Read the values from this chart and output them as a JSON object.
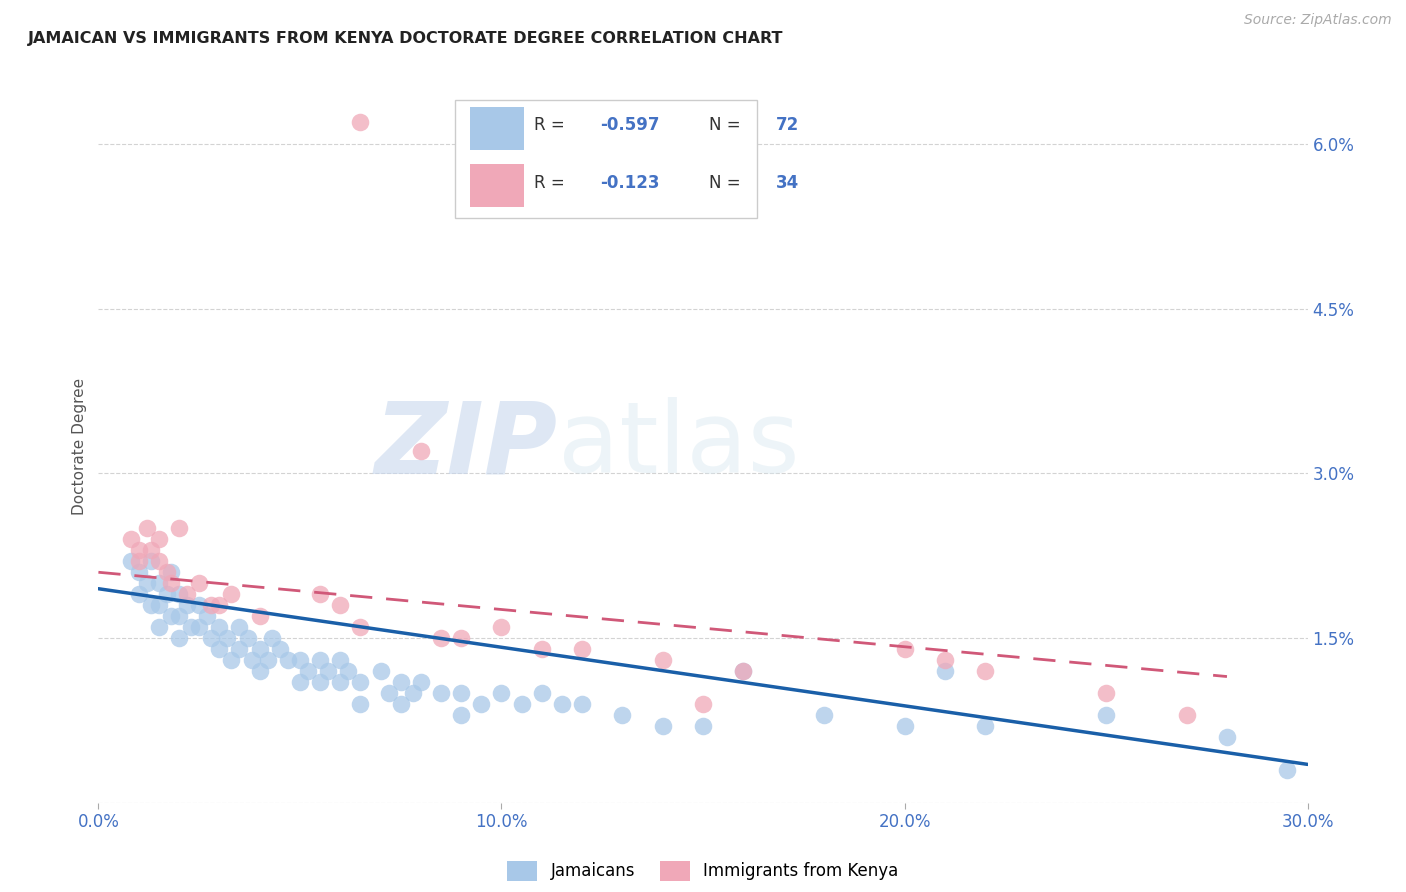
{
  "title": "JAMAICAN VS IMMIGRANTS FROM KENYA DOCTORATE DEGREE CORRELATION CHART",
  "source": "Source: ZipAtlas.com",
  "ylabel": "Doctorate Degree",
  "x_min": 0.0,
  "x_max": 0.3,
  "y_min": 0.0,
  "y_max": 0.065,
  "right_yticks": [
    0.0,
    0.015,
    0.03,
    0.045,
    0.06
  ],
  "right_yticklabels": [
    "",
    "1.5%",
    "3.0%",
    "4.5%",
    "6.0%"
  ],
  "x_ticks": [
    0.0,
    0.1,
    0.2,
    0.3
  ],
  "x_ticklabels": [
    "0.0%",
    "10.0%",
    "20.0%",
    "30.0%"
  ],
  "grid_color": "#c8c8c8",
  "background_color": "#ffffff",
  "blue_color": "#a8c8e8",
  "pink_color": "#f0a8b8",
  "blue_line_color": "#1a5fa8",
  "pink_line_color": "#d05878",
  "legend1": "Jamaicans",
  "legend2": "Immigrants from Kenya",
  "watermark_zip": "ZIP",
  "watermark_atlas": "atlas",
  "blue_scatter_x": [
    0.008,
    0.01,
    0.01,
    0.012,
    0.013,
    0.013,
    0.015,
    0.015,
    0.015,
    0.017,
    0.018,
    0.018,
    0.02,
    0.02,
    0.02,
    0.022,
    0.023,
    0.025,
    0.025,
    0.027,
    0.028,
    0.03,
    0.03,
    0.032,
    0.033,
    0.035,
    0.035,
    0.037,
    0.038,
    0.04,
    0.04,
    0.042,
    0.043,
    0.045,
    0.047,
    0.05,
    0.05,
    0.052,
    0.055,
    0.055,
    0.057,
    0.06,
    0.06,
    0.062,
    0.065,
    0.065,
    0.07,
    0.072,
    0.075,
    0.075,
    0.078,
    0.08,
    0.085,
    0.09,
    0.09,
    0.095,
    0.1,
    0.105,
    0.11,
    0.115,
    0.12,
    0.13,
    0.14,
    0.15,
    0.16,
    0.18,
    0.2,
    0.21,
    0.22,
    0.25,
    0.28,
    0.295
  ],
  "blue_scatter_y": [
    0.022,
    0.021,
    0.019,
    0.02,
    0.018,
    0.022,
    0.02,
    0.018,
    0.016,
    0.019,
    0.017,
    0.021,
    0.019,
    0.017,
    0.015,
    0.018,
    0.016,
    0.018,
    0.016,
    0.017,
    0.015,
    0.016,
    0.014,
    0.015,
    0.013,
    0.016,
    0.014,
    0.015,
    0.013,
    0.014,
    0.012,
    0.013,
    0.015,
    0.014,
    0.013,
    0.013,
    0.011,
    0.012,
    0.013,
    0.011,
    0.012,
    0.013,
    0.011,
    0.012,
    0.011,
    0.009,
    0.012,
    0.01,
    0.011,
    0.009,
    0.01,
    0.011,
    0.01,
    0.01,
    0.008,
    0.009,
    0.01,
    0.009,
    0.01,
    0.009,
    0.009,
    0.008,
    0.007,
    0.007,
    0.012,
    0.008,
    0.007,
    0.012,
    0.007,
    0.008,
    0.006,
    0.003
  ],
  "pink_scatter_x": [
    0.008,
    0.01,
    0.01,
    0.012,
    0.013,
    0.015,
    0.015,
    0.017,
    0.018,
    0.02,
    0.022,
    0.025,
    0.028,
    0.03,
    0.033,
    0.04,
    0.055,
    0.06,
    0.065,
    0.065,
    0.08,
    0.085,
    0.09,
    0.1,
    0.11,
    0.12,
    0.14,
    0.15,
    0.16,
    0.2,
    0.21,
    0.22,
    0.25,
    0.27
  ],
  "pink_scatter_y": [
    0.024,
    0.023,
    0.022,
    0.025,
    0.023,
    0.024,
    0.022,
    0.021,
    0.02,
    0.025,
    0.019,
    0.02,
    0.018,
    0.018,
    0.019,
    0.017,
    0.019,
    0.018,
    0.062,
    0.016,
    0.032,
    0.015,
    0.015,
    0.016,
    0.014,
    0.014,
    0.013,
    0.009,
    0.012,
    0.014,
    0.013,
    0.012,
    0.01,
    0.008
  ],
  "blue_line_x0": 0.0,
  "blue_line_x1": 0.3,
  "blue_line_y0": 0.0195,
  "blue_line_y1": 0.0035,
  "pink_line_x0": 0.0,
  "pink_line_x1": 0.28,
  "pink_line_y0": 0.021,
  "pink_line_y1": 0.0115
}
